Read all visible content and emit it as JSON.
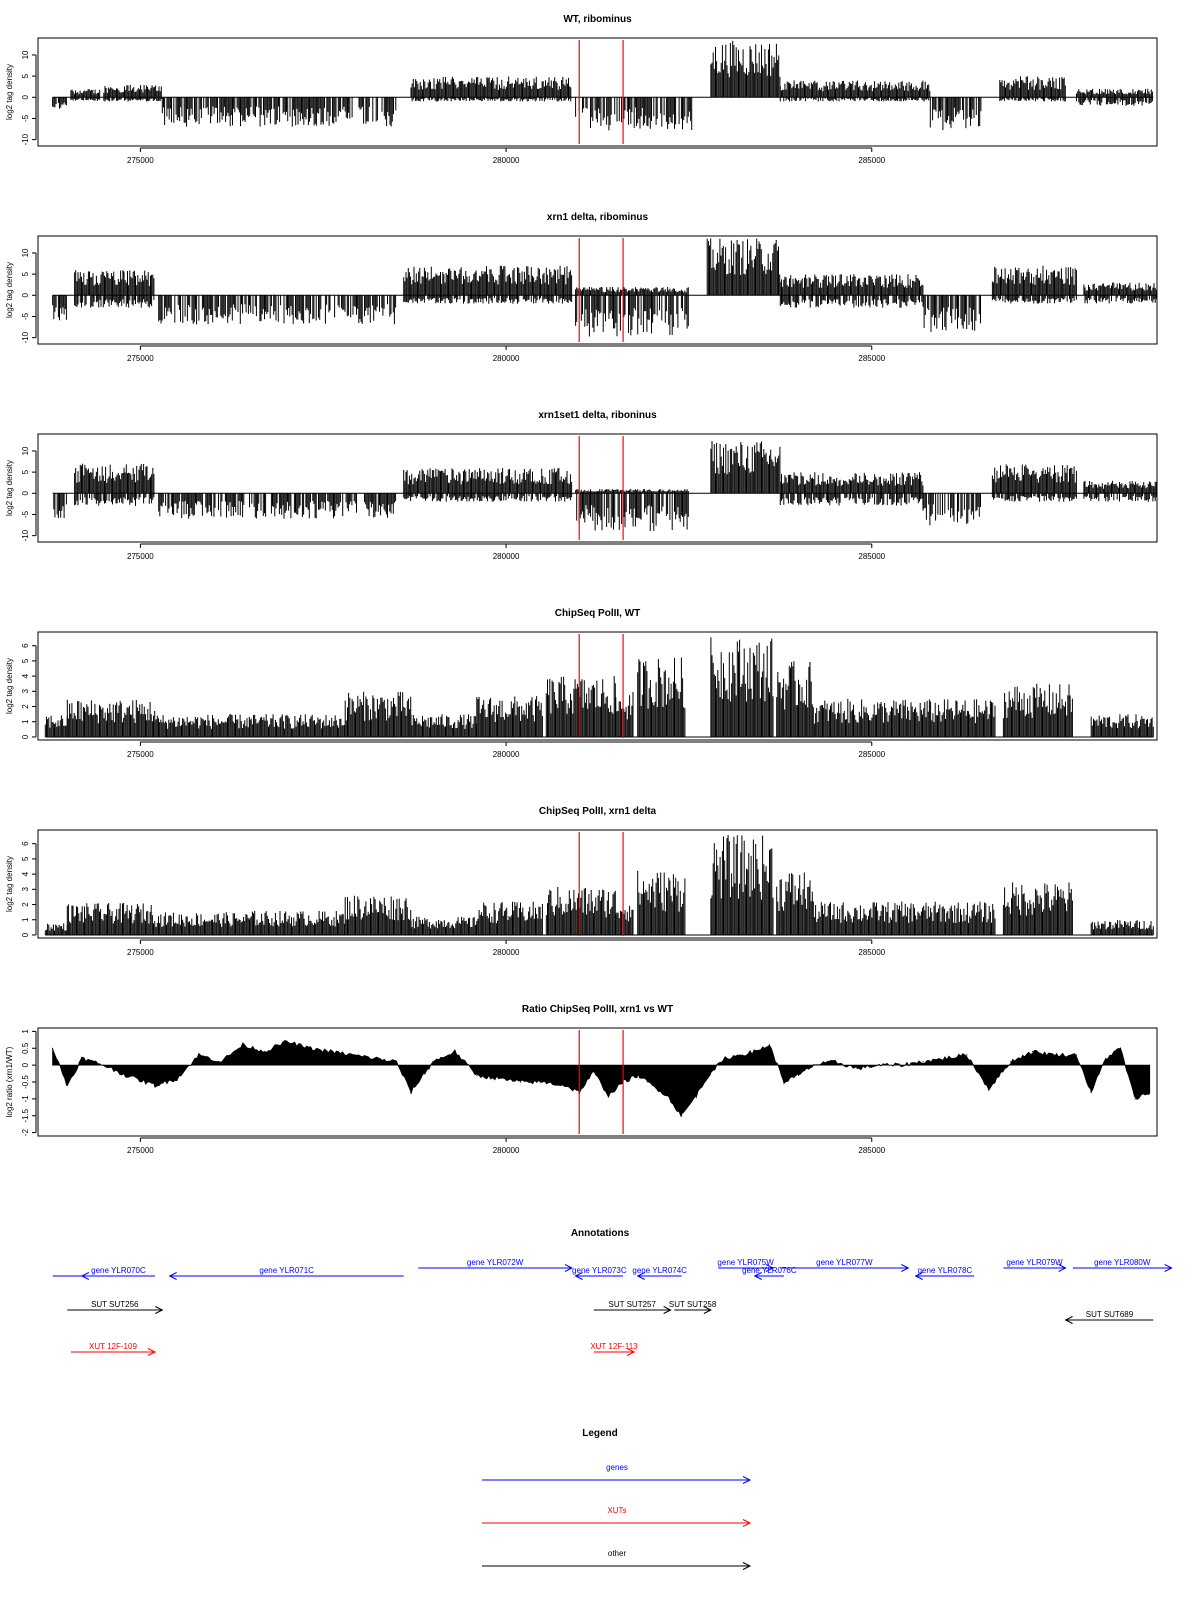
{
  "chart_data": [
    {
      "type": "bar",
      "title": "WT, ribominus",
      "ylabel": "log2 tag density",
      "xlim": [
        273600,
        288900
      ],
      "ylim": [
        -11.5,
        14
      ],
      "yticks": [
        -10,
        -5,
        0,
        5,
        10
      ],
      "xticks": [
        275000,
        280000,
        285000
      ],
      "grid": false,
      "vlines": [
        281000,
        281600
      ],
      "vline_color": "#ff0000",
      "segments": [
        {
          "x0": 273800,
          "x1": 274000,
          "lo": -3,
          "hi": 0
        },
        {
          "x0": 274050,
          "x1": 274450,
          "lo": -1,
          "hi": 2
        },
        {
          "x0": 274500,
          "x1": 275300,
          "lo": -1,
          "hi": 3
        },
        {
          "x0": 275300,
          "x1": 278500,
          "lo": -7,
          "hi": 0
        },
        {
          "x0": 278700,
          "x1": 280900,
          "lo": -1,
          "hi": 5
        },
        {
          "x0": 280950,
          "x1": 282550,
          "lo": -8,
          "hi": 0
        },
        {
          "x0": 282800,
          "x1": 283750,
          "lo": 0,
          "hi": 13.5
        },
        {
          "x0": 283750,
          "x1": 285800,
          "lo": -1,
          "hi": 4
        },
        {
          "x0": 285800,
          "x1": 286500,
          "lo": -8,
          "hi": 0
        },
        {
          "x0": 286750,
          "x1": 287650,
          "lo": -1,
          "hi": 5
        },
        {
          "x0": 287800,
          "x1": 288850,
          "lo": -2,
          "hi": 2
        }
      ]
    },
    {
      "type": "bar",
      "title": "xrn1 delta, ribominus",
      "ylabel": "log2 tag density",
      "xlim": [
        273600,
        288900
      ],
      "ylim": [
        -11.5,
        14
      ],
      "yticks": [
        -10,
        -5,
        0,
        5,
        10
      ],
      "xticks": [
        275000,
        280000,
        285000
      ],
      "grid": false,
      "vlines": [
        281000,
        281600
      ],
      "vline_color": "#ff0000",
      "segments": [
        {
          "x0": 273800,
          "x1": 274000,
          "lo": -6,
          "hi": 0
        },
        {
          "x0": 274100,
          "x1": 275200,
          "lo": -3,
          "hi": 6
        },
        {
          "x0": 275250,
          "x1": 278500,
          "lo": -7,
          "hi": 0
        },
        {
          "x0": 278600,
          "x1": 280900,
          "lo": -2,
          "hi": 7
        },
        {
          "x0": 280950,
          "x1": 282500,
          "lo": -10,
          "hi": 2
        },
        {
          "x0": 282750,
          "x1": 283750,
          "lo": 0,
          "hi": 13.5
        },
        {
          "x0": 283750,
          "x1": 285700,
          "lo": -3,
          "hi": 5
        },
        {
          "x0": 285700,
          "x1": 286500,
          "lo": -9,
          "hi": 0
        },
        {
          "x0": 286650,
          "x1": 287800,
          "lo": -2,
          "hi": 7
        },
        {
          "x0": 287900,
          "x1": 288900,
          "lo": -2,
          "hi": 3
        }
      ]
    },
    {
      "type": "bar",
      "title": "xrn1set1 delta, riboninus",
      "ylabel": "log2 tag density",
      "xlim": [
        273600,
        288900
      ],
      "ylim": [
        -11.5,
        14
      ],
      "yticks": [
        -10,
        -5,
        0,
        5,
        10
      ],
      "xticks": [
        275000,
        280000,
        285000
      ],
      "grid": false,
      "vlines": [
        281000,
        281600
      ],
      "vline_color": "#ff0000",
      "segments": [
        {
          "x0": 273800,
          "x1": 274000,
          "lo": -6,
          "hi": 0
        },
        {
          "x0": 274100,
          "x1": 275200,
          "lo": -3,
          "hi": 7
        },
        {
          "x0": 275250,
          "x1": 278500,
          "lo": -6,
          "hi": 0
        },
        {
          "x0": 278600,
          "x1": 280900,
          "lo": -2,
          "hi": 6
        },
        {
          "x0": 280950,
          "x1": 282500,
          "lo": -9,
          "hi": 1
        },
        {
          "x0": 282800,
          "x1": 283750,
          "lo": 0,
          "hi": 12.5
        },
        {
          "x0": 283750,
          "x1": 285700,
          "lo": -3,
          "hi": 5
        },
        {
          "x0": 285700,
          "x1": 286500,
          "lo": -8,
          "hi": 0
        },
        {
          "x0": 286650,
          "x1": 287800,
          "lo": -2,
          "hi": 7
        },
        {
          "x0": 287900,
          "x1": 288900,
          "lo": -2,
          "hi": 3
        }
      ]
    },
    {
      "type": "bar",
      "title": "ChipSeq PolII, WT",
      "ylabel": "log2 tag density",
      "xlim": [
        273600,
        288900
      ],
      "ylim": [
        -0.2,
        6.9
      ],
      "yticks": [
        0,
        1,
        2,
        3,
        4,
        5,
        6
      ],
      "xticks": [
        275000,
        280000,
        285000
      ],
      "grid": false,
      "vlines": [
        281000,
        281600
      ],
      "vline_color": "#ff0000",
      "segments": [
        {
          "x0": 273700,
          "x1": 274000,
          "lo": 0,
          "hi": 1.5
        },
        {
          "x0": 274000,
          "x1": 275200,
          "lo": 0,
          "hi": 2.5
        },
        {
          "x0": 275200,
          "x1": 276500,
          "lo": 0,
          "hi": 1.5
        },
        {
          "x0": 276500,
          "x1": 277800,
          "lo": 0,
          "hi": 1.5
        },
        {
          "x0": 277800,
          "x1": 278700,
          "lo": 0,
          "hi": 3
        },
        {
          "x0": 278700,
          "x1": 279600,
          "lo": 0,
          "hi": 1.5
        },
        {
          "x0": 279600,
          "x1": 280500,
          "lo": 0,
          "hi": 2.7
        },
        {
          "x0": 280550,
          "x1": 281500,
          "lo": 0,
          "hi": 4
        },
        {
          "x0": 281500,
          "x1": 281750,
          "lo": 0,
          "hi": 3
        },
        {
          "x0": 281800,
          "x1": 282450,
          "lo": 0,
          "hi": 5.3
        },
        {
          "x0": 282800,
          "x1": 283650,
          "lo": 0,
          "hi": 6.6
        },
        {
          "x0": 283700,
          "x1": 284200,
          "lo": 0,
          "hi": 5
        },
        {
          "x0": 284200,
          "x1": 286700,
          "lo": 0,
          "hi": 2.5
        },
        {
          "x0": 286800,
          "x1": 287750,
          "lo": 0,
          "hi": 3.5
        },
        {
          "x0": 288000,
          "x1": 288850,
          "lo": 0,
          "hi": 1.5
        }
      ]
    },
    {
      "type": "bar",
      "title": "ChipSeq PolII, xrn1 delta",
      "ylabel": "log2 tag density",
      "xlim": [
        273600,
        288900
      ],
      "ylim": [
        -0.2,
        6.9
      ],
      "yticks": [
        0,
        1,
        2,
        3,
        4,
        5,
        6
      ],
      "xticks": [
        275000,
        280000,
        285000
      ],
      "grid": false,
      "vlines": [
        281000,
        281600
      ],
      "vline_color": "#ff0000",
      "segments": [
        {
          "x0": 273700,
          "x1": 274000,
          "lo": 0,
          "hi": 0.8
        },
        {
          "x0": 274000,
          "x1": 275200,
          "lo": 0,
          "hi": 2.1
        },
        {
          "x0": 275200,
          "x1": 276500,
          "lo": 0,
          "hi": 1.5
        },
        {
          "x0": 276500,
          "x1": 277800,
          "lo": 0,
          "hi": 1.6
        },
        {
          "x0": 277800,
          "x1": 278700,
          "lo": 0,
          "hi": 2.7
        },
        {
          "x0": 278700,
          "x1": 279600,
          "lo": 0,
          "hi": 1.2
        },
        {
          "x0": 279600,
          "x1": 280500,
          "lo": 0,
          "hi": 2.2
        },
        {
          "x0": 280550,
          "x1": 281500,
          "lo": 0,
          "hi": 3.2
        },
        {
          "x0": 281500,
          "x1": 281750,
          "lo": 0,
          "hi": 2.5
        },
        {
          "x0": 281800,
          "x1": 282450,
          "lo": 0,
          "hi": 4.3
        },
        {
          "x0": 282800,
          "x1": 283650,
          "lo": 0,
          "hi": 6.6
        },
        {
          "x0": 283700,
          "x1": 284200,
          "lo": 0,
          "hi": 4.3
        },
        {
          "x0": 284200,
          "x1": 286700,
          "lo": 0,
          "hi": 2.2
        },
        {
          "x0": 286800,
          "x1": 287750,
          "lo": 0,
          "hi": 3.5
        },
        {
          "x0": 288000,
          "x1": 288850,
          "lo": 0,
          "hi": 1
        }
      ]
    },
    {
      "type": "area",
      "title": "Ratio ChipSeq PolII, xrn1 vs WT",
      "ylabel": "log2 ratio (xrn1/WT)",
      "xlim": [
        273600,
        288900
      ],
      "ylim": [
        -2.1,
        1.1
      ],
      "yticks": [
        -2.0,
        -1.5,
        -1.0,
        -0.5,
        0.0,
        0.5,
        1.0
      ],
      "xticks": [
        275000,
        280000,
        285000
      ],
      "grid": false,
      "vlines": [
        281000,
        281600
      ],
      "vline_color": "#ff0000",
      "x": [
        273800,
        274000,
        274200,
        274500,
        274800,
        275200,
        275500,
        275800,
        276100,
        276400,
        276700,
        277000,
        277300,
        277600,
        277900,
        278200,
        278500,
        278700,
        279000,
        279300,
        279600,
        279900,
        280200,
        280500,
        280800,
        281000,
        281200,
        281400,
        281600,
        281800,
        282000,
        282200,
        282400,
        282600,
        282800,
        283000,
        283200,
        283400,
        283600,
        283800,
        284000,
        284200,
        284500,
        284800,
        285100,
        285400,
        285700,
        286000,
        286300,
        286600,
        286900,
        287200,
        287500,
        287800,
        288000,
        288200,
        288400,
        288600,
        288800
      ],
      "y": [
        0.5,
        -0.6,
        0.2,
        0.0,
        -0.3,
        -0.6,
        -0.4,
        0.3,
        0.1,
        0.6,
        0.4,
        0.7,
        0.5,
        0.4,
        0.3,
        0.2,
        0.1,
        -0.8,
        0.1,
        0.4,
        -0.3,
        -0.4,
        -0.5,
        -0.5,
        -0.6,
        -0.8,
        -0.2,
        -0.9,
        -0.5,
        -0.3,
        -0.6,
        -0.9,
        -1.5,
        -0.9,
        -0.2,
        0.2,
        0.3,
        0.4,
        0.6,
        -0.5,
        -0.3,
        0.0,
        0.1,
        -0.1,
        0.0,
        0.0,
        0.1,
        0.2,
        0.3,
        -0.7,
        0.1,
        0.4,
        0.3,
        0.3,
        -0.8,
        0.2,
        0.5,
        -1.0,
        -0.8
      ]
    }
  ],
  "annotations": {
    "title": "Annotations",
    "xlim": [
      273600,
      288900
    ],
    "features": [
      {
        "label": "",
        "x0": 274500,
        "x1": 273800,
        "row": 0,
        "kind": "genes"
      },
      {
        "label": "gene YLR070C",
        "x0": 275200,
        "x1": 274200,
        "row": 0,
        "kind": "genes"
      },
      {
        "label": "gene YLR071C",
        "x0": 278600,
        "x1": 275400,
        "row": 0,
        "kind": "genes"
      },
      {
        "label": "gene YLR072W",
        "x0": 278800,
        "x1": 280900,
        "row": -1,
        "kind": "genes"
      },
      {
        "label": "gene YLR073C",
        "x0": 281600,
        "x1": 280950,
        "row": 0,
        "kind": "genes"
      },
      {
        "label": "gene YLR074C",
        "x0": 282400,
        "x1": 281800,
        "row": 0,
        "kind": "genes"
      },
      {
        "label": "gene YLR075W",
        "x0": 282900,
        "x1": 283650,
        "row": -1,
        "kind": "genes"
      },
      {
        "label": "gene YLR076C",
        "x0": 283800,
        "x1": 283400,
        "row": 0,
        "kind": "genes"
      },
      {
        "label": "gene YLR077W",
        "x0": 283750,
        "x1": 285500,
        "row": -1,
        "kind": "genes"
      },
      {
        "label": "gene YLR078C",
        "x0": 286400,
        "x1": 285600,
        "row": 0,
        "kind": "genes"
      },
      {
        "label": "gene YLR079W",
        "x0": 286800,
        "x1": 287650,
        "row": -1,
        "kind": "genes"
      },
      {
        "label": "gene YLR080W",
        "x0": 287750,
        "x1": 289100,
        "row": -1,
        "kind": "genes"
      },
      {
        "label": "SUT SUT256",
        "x0": 274000,
        "x1": 275300,
        "row": 1,
        "kind": "other"
      },
      {
        "label": "SUT SUT257",
        "x0": 281200,
        "x1": 282250,
        "row": 1,
        "kind": "other"
      },
      {
        "label": "SUT SUT258",
        "x0": 282300,
        "x1": 282800,
        "row": 1,
        "kind": "other"
      },
      {
        "label": "SUT SUT689",
        "x0": 288850,
        "x1": 287650,
        "row": 2,
        "kind": "other"
      },
      {
        "label": "XUT 12F-109",
        "x0": 274050,
        "x1": 275200,
        "row": 3,
        "kind": "XUTs"
      },
      {
        "label": "XUT 12F-113",
        "x0": 281200,
        "x1": 281750,
        "row": 3,
        "kind": "XUTs"
      }
    ]
  },
  "legend": {
    "title": "Legend",
    "items": [
      {
        "label": "genes",
        "color": "#0000ff"
      },
      {
        "label": "XUTs",
        "color": "#ff0000"
      },
      {
        "label": "other",
        "color": "#000000"
      }
    ]
  }
}
